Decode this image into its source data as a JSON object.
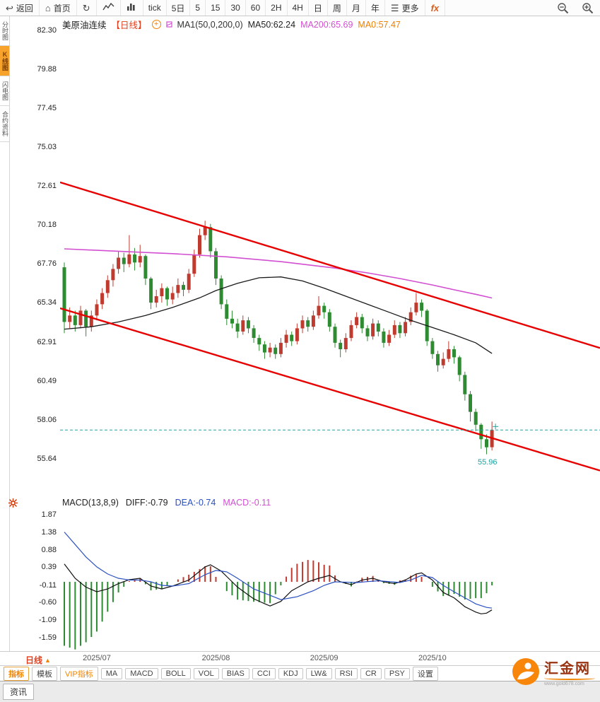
{
  "toolbar": {
    "back": "返回",
    "home": "首页",
    "periods": [
      "tick",
      "5日",
      "5",
      "15",
      "30",
      "60",
      "2H",
      "4H",
      "日",
      "周",
      "月",
      "年"
    ],
    "more": "更多",
    "fx": "fx"
  },
  "sidebar": {
    "items": [
      {
        "label": "分时图",
        "active": false
      },
      {
        "label": "K线图",
        "active": true
      },
      {
        "label": "闪电图",
        "active": false
      },
      {
        "label": "合约资料",
        "active": false
      }
    ]
  },
  "chart_header": {
    "symbol": "美原油连续",
    "period_tag": "【日线】",
    "add_label": "+",
    "ma_formula": "MA1(50,0,200,0)",
    "ma50_label": "MA50:62.24",
    "ma200_label": "MA200:65.69",
    "ma0_label": "MA0:57.47"
  },
  "macd_header": {
    "formula": "MACD(13,8,9)",
    "diff": "DIFF:-0.79",
    "dea": "DEA:-0.74",
    "macd": "MACD:-0.11"
  },
  "bottom": {
    "period_selector": "日线",
    "tabs": [
      {
        "label": "指标",
        "style": "active"
      },
      {
        "label": "模板",
        "style": "normal"
      },
      {
        "label": "VIP指标",
        "style": "vip"
      },
      {
        "label": "MA",
        "style": "normal"
      },
      {
        "label": "MACD",
        "style": "normal"
      },
      {
        "label": "BOLL",
        "style": "normal"
      },
      {
        "label": "VOL",
        "style": "normal"
      },
      {
        "label": "BIAS",
        "style": "normal"
      },
      {
        "label": "CCI",
        "style": "normal"
      },
      {
        "label": "KDJ",
        "style": "normal"
      },
      {
        "label": "LW&",
        "style": "normal"
      },
      {
        "label": "RSI",
        "style": "normal"
      },
      {
        "label": "CR",
        "style": "normal"
      },
      {
        "label": "PSY",
        "style": "normal"
      },
      {
        "label": "设置",
        "style": "normal"
      }
    ],
    "news_tab": "资讯",
    "logo_text": "汇金网",
    "logo_sub": "www.gold678.com"
  },
  "colors": {
    "up": "#bf3b30",
    "down": "#2e8b32",
    "ma50": "#1a1a1a",
    "ma200": "#d24fd2",
    "trend": "#e60000",
    "price_line": "#1fa3a3",
    "diff": "#111111",
    "dea": "#2b50c0",
    "accent_orange": "#f08300",
    "tag_red": "#e0401e"
  },
  "chart_data": {
    "type": "candlestick",
    "symbol": "美原油连续",
    "period": "日线",
    "y_axis": [
      82.3,
      79.88,
      77.45,
      75.03,
      72.61,
      70.18,
      67.76,
      65.34,
      62.91,
      60.49,
      58.06,
      55.64
    ],
    "x_labels": [
      {
        "label": "2025/07",
        "index": 6
      },
      {
        "label": "2025/08",
        "index": 28
      },
      {
        "label": "2025/09",
        "index": 48
      },
      {
        "label": "2025/10",
        "index": 68
      }
    ],
    "current_price": 57.47,
    "low_label": "55.96",
    "low_index": 78,
    "low_value": 55.96,
    "candles": [
      [
        67.6,
        67.9,
        63.5,
        64.2
      ],
      [
        64.2,
        65.1,
        63.8,
        64.6
      ],
      [
        64.6,
        64.9,
        63.6,
        64.0
      ],
      [
        64.0,
        65.2,
        63.8,
        64.9
      ],
      [
        64.9,
        65.0,
        63.3,
        63.9
      ],
      [
        63.9,
        64.9,
        63.6,
        64.6
      ],
      [
        64.6,
        65.6,
        64.3,
        65.3
      ],
      [
        65.3,
        66.3,
        65.0,
        66.0
      ],
      [
        66.0,
        67.1,
        65.7,
        66.8
      ],
      [
        66.8,
        67.8,
        66.4,
        67.5
      ],
      [
        67.5,
        68.6,
        67.2,
        68.2
      ],
      [
        68.2,
        68.5,
        67.3,
        67.8
      ],
      [
        67.8,
        69.6,
        67.6,
        68.4
      ],
      [
        68.4,
        68.8,
        67.4,
        67.9
      ],
      [
        67.9,
        69.0,
        67.6,
        68.3
      ],
      [
        68.3,
        68.4,
        66.5,
        66.9
      ],
      [
        66.9,
        67.0,
        65.0,
        65.4
      ],
      [
        65.4,
        66.2,
        65.1,
        65.8
      ],
      [
        65.8,
        66.6,
        65.4,
        66.3
      ],
      [
        66.3,
        66.4,
        65.2,
        65.6
      ],
      [
        65.6,
        66.4,
        65.3,
        66.0
      ],
      [
        66.0,
        66.9,
        65.7,
        66.5
      ],
      [
        66.5,
        66.7,
        65.8,
        66.2
      ],
      [
        66.2,
        67.5,
        66.0,
        67.2
      ],
      [
        67.2,
        68.7,
        67.0,
        68.4
      ],
      [
        68.4,
        70.0,
        68.2,
        69.6
      ],
      [
        69.6,
        70.5,
        69.3,
        70.1
      ],
      [
        70.1,
        70.3,
        68.2,
        68.6
      ],
      [
        68.6,
        68.8,
        66.5,
        66.9
      ],
      [
        66.9,
        67.1,
        65.0,
        65.3
      ],
      [
        65.3,
        65.6,
        64.0,
        64.4
      ],
      [
        64.4,
        64.9,
        63.8,
        64.1
      ],
      [
        64.1,
        64.4,
        63.2,
        63.6
      ],
      [
        63.6,
        64.6,
        63.4,
        64.3
      ],
      [
        64.3,
        64.5,
        63.5,
        63.8
      ],
      [
        63.8,
        64.0,
        62.9,
        63.2
      ],
      [
        63.2,
        63.4,
        62.4,
        62.8
      ],
      [
        62.8,
        63.0,
        61.9,
        62.3
      ],
      [
        62.3,
        62.9,
        62.0,
        62.6
      ],
      [
        62.6,
        62.8,
        61.9,
        62.2
      ],
      [
        62.2,
        63.2,
        62.0,
        62.9
      ],
      [
        62.9,
        63.7,
        62.6,
        63.4
      ],
      [
        63.4,
        63.6,
        62.7,
        63.0
      ],
      [
        63.0,
        64.1,
        62.8,
        63.8
      ],
      [
        63.8,
        64.6,
        63.5,
        64.3
      ],
      [
        64.3,
        64.5,
        63.6,
        63.9
      ],
      [
        63.9,
        64.9,
        63.7,
        64.6
      ],
      [
        64.6,
        65.8,
        64.4,
        65.2
      ],
      [
        65.2,
        65.4,
        64.4,
        64.8
      ],
      [
        64.8,
        65.0,
        63.6,
        63.9
      ],
      [
        63.9,
        64.1,
        62.6,
        62.9
      ],
      [
        62.9,
        63.1,
        62.0,
        62.5
      ],
      [
        62.5,
        63.5,
        62.3,
        63.2
      ],
      [
        63.2,
        64.3,
        63.0,
        64.0
      ],
      [
        64.0,
        64.8,
        63.8,
        64.5
      ],
      [
        64.5,
        64.7,
        63.5,
        63.8
      ],
      [
        63.8,
        64.0,
        63.0,
        63.3
      ],
      [
        63.3,
        64.4,
        63.1,
        64.1
      ],
      [
        64.1,
        64.3,
        63.3,
        63.6
      ],
      [
        63.6,
        63.8,
        62.6,
        62.9
      ],
      [
        62.9,
        63.7,
        62.7,
        63.4
      ],
      [
        63.4,
        64.3,
        63.2,
        64.0
      ],
      [
        64.0,
        64.2,
        63.2,
        63.5
      ],
      [
        63.5,
        64.5,
        63.3,
        64.2
      ],
      [
        64.2,
        65.1,
        64.0,
        64.8
      ],
      [
        64.8,
        66.0,
        64.6,
        65.4
      ],
      [
        65.4,
        65.6,
        64.5,
        64.9
      ],
      [
        64.9,
        65.0,
        62.7,
        63.0
      ],
      [
        63.0,
        63.2,
        61.9,
        62.2
      ],
      [
        62.2,
        62.4,
        61.1,
        61.5
      ],
      [
        61.5,
        62.3,
        61.3,
        61.9
      ],
      [
        61.9,
        63.0,
        61.7,
        62.5
      ],
      [
        62.5,
        62.7,
        61.6,
        62.0
      ],
      [
        62.0,
        62.1,
        60.5,
        60.9
      ],
      [
        60.9,
        61.1,
        59.3,
        59.7
      ],
      [
        59.7,
        59.9,
        58.0,
        58.6
      ],
      [
        58.6,
        58.8,
        57.4,
        57.8
      ],
      [
        57.8,
        57.9,
        56.3,
        56.9
      ],
      [
        56.9,
        57.2,
        55.96,
        56.4
      ],
      [
        56.4,
        58.0,
        56.2,
        57.47
      ]
    ],
    "ma50": [
      [
        0,
        63.75
      ],
      [
        5,
        63.9
      ],
      [
        10,
        64.2
      ],
      [
        15,
        64.6
      ],
      [
        20,
        65.1
      ],
      [
        25,
        65.7
      ],
      [
        28,
        66.15
      ],
      [
        32,
        66.6
      ],
      [
        36,
        66.95
      ],
      [
        40,
        67.0
      ],
      [
        44,
        66.75
      ],
      [
        48,
        66.3
      ],
      [
        52,
        65.8
      ],
      [
        56,
        65.3
      ],
      [
        60,
        64.8
      ],
      [
        64,
        64.3
      ],
      [
        68,
        63.85
      ],
      [
        72,
        63.4
      ],
      [
        76,
        62.9
      ],
      [
        79,
        62.24
      ]
    ],
    "ma200": [
      [
        0,
        68.75
      ],
      [
        10,
        68.6
      ],
      [
        20,
        68.45
      ],
      [
        30,
        68.25
      ],
      [
        40,
        67.95
      ],
      [
        50,
        67.55
      ],
      [
        56,
        67.25
      ],
      [
        62,
        66.9
      ],
      [
        68,
        66.5
      ],
      [
        72,
        66.2
      ],
      [
        76,
        65.92
      ],
      [
        79,
        65.69
      ]
    ],
    "trend_lines": [
      {
        "x1_frac": 0,
        "v1": 72.89,
        "x2_frac": 1,
        "v2": 62.58
      },
      {
        "x1_frac": 0,
        "v1": 65.05,
        "x2_frac": 1,
        "v2": 54.95
      }
    ],
    "macd": {
      "label": "MACD(13,8,9)",
      "y_axis": [
        1.87,
        1.38,
        0.88,
        0.39,
        -0.11,
        -0.6,
        -1.09,
        -1.59
      ],
      "diff_keyframes": [
        [
          0,
          0.5
        ],
        [
          2,
          0.1
        ],
        [
          4,
          -0.15
        ],
        [
          6,
          -0.28
        ],
        [
          8,
          -0.2
        ],
        [
          10,
          -0.05
        ],
        [
          12,
          0.06
        ],
        [
          14,
          0.1
        ],
        [
          16,
          -0.12
        ],
        [
          18,
          -0.2
        ],
        [
          20,
          -0.12
        ],
        [
          23,
          0.05
        ],
        [
          26,
          0.42
        ],
        [
          27,
          0.48
        ],
        [
          29,
          0.3
        ],
        [
          32,
          -0.15
        ],
        [
          35,
          -0.48
        ],
        [
          38,
          -0.68
        ],
        [
          40,
          -0.55
        ],
        [
          42,
          -0.25
        ],
        [
          45,
          0.0
        ],
        [
          47,
          0.1
        ],
        [
          49,
          0.18
        ],
        [
          51,
          0.0
        ],
        [
          53,
          -0.08
        ],
        [
          55,
          0.05
        ],
        [
          57,
          0.1
        ],
        [
          59,
          0.0
        ],
        [
          61,
          -0.05
        ],
        [
          63,
          0.05
        ],
        [
          65,
          0.22
        ],
        [
          66,
          0.25
        ],
        [
          68,
          0.05
        ],
        [
          70,
          -0.3
        ],
        [
          72,
          -0.45
        ],
        [
          74,
          -0.7
        ],
        [
          76,
          -0.85
        ],
        [
          77,
          -0.9
        ],
        [
          78,
          -0.88
        ],
        [
          79,
          -0.79
        ]
      ],
      "dea_keyframes": [
        [
          0,
          1.4
        ],
        [
          2,
          1.05
        ],
        [
          4,
          0.7
        ],
        [
          6,
          0.42
        ],
        [
          8,
          0.22
        ],
        [
          10,
          0.1
        ],
        [
          12,
          0.05
        ],
        [
          14,
          0.05
        ],
        [
          16,
          0.0
        ],
        [
          18,
          -0.1
        ],
        [
          20,
          -0.12
        ],
        [
          23,
          -0.05
        ],
        [
          26,
          0.2
        ],
        [
          28,
          0.32
        ],
        [
          30,
          0.28
        ],
        [
          32,
          0.1
        ],
        [
          35,
          -0.2
        ],
        [
          38,
          -0.38
        ],
        [
          40,
          -0.5
        ],
        [
          43,
          -0.42
        ],
        [
          46,
          -0.25
        ],
        [
          48,
          -0.1
        ],
        [
          50,
          0.0
        ],
        [
          54,
          -0.02
        ],
        [
          58,
          0.03
        ],
        [
          62,
          -0.02
        ],
        [
          64,
          0.05
        ],
        [
          66,
          0.18
        ],
        [
          68,
          0.12
        ],
        [
          70,
          -0.1
        ],
        [
          72,
          -0.28
        ],
        [
          74,
          -0.45
        ],
        [
          76,
          -0.62
        ],
        [
          78,
          -0.72
        ],
        [
          79,
          -0.74
        ]
      ]
    }
  }
}
